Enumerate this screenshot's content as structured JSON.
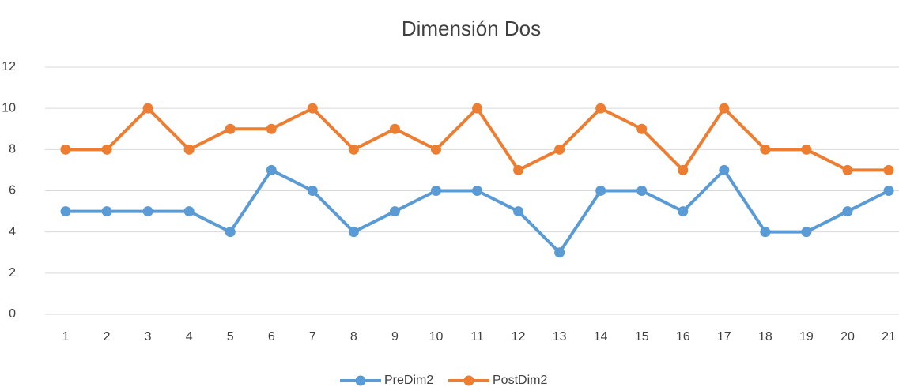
{
  "chart_data": {
    "type": "line",
    "title": "Dimensión Dos",
    "categories": [
      "1",
      "2",
      "3",
      "4",
      "5",
      "6",
      "7",
      "8",
      "9",
      "10",
      "11",
      "12",
      "13",
      "14",
      "15",
      "16",
      "17",
      "18",
      "19",
      "20",
      "21"
    ],
    "series": [
      {
        "name": "PreDim2",
        "color": "#5b9bd5",
        "values": [
          5,
          5,
          5,
          5,
          4,
          7,
          6,
          4,
          5,
          6,
          6,
          5,
          3,
          6,
          6,
          5,
          7,
          4,
          4,
          5,
          6
        ]
      },
      {
        "name": "PostDim2",
        "color": "#ed7d31",
        "values": [
          8,
          8,
          10,
          8,
          9,
          9,
          10,
          8,
          9,
          8,
          10,
          7,
          8,
          10,
          9,
          7,
          10,
          8,
          8,
          7,
          7
        ]
      }
    ],
    "ylim": [
      0,
      12
    ],
    "yticks": [
      0,
      2,
      4,
      6,
      8,
      10,
      12
    ],
    "grid": true,
    "legend": "bottom"
  }
}
